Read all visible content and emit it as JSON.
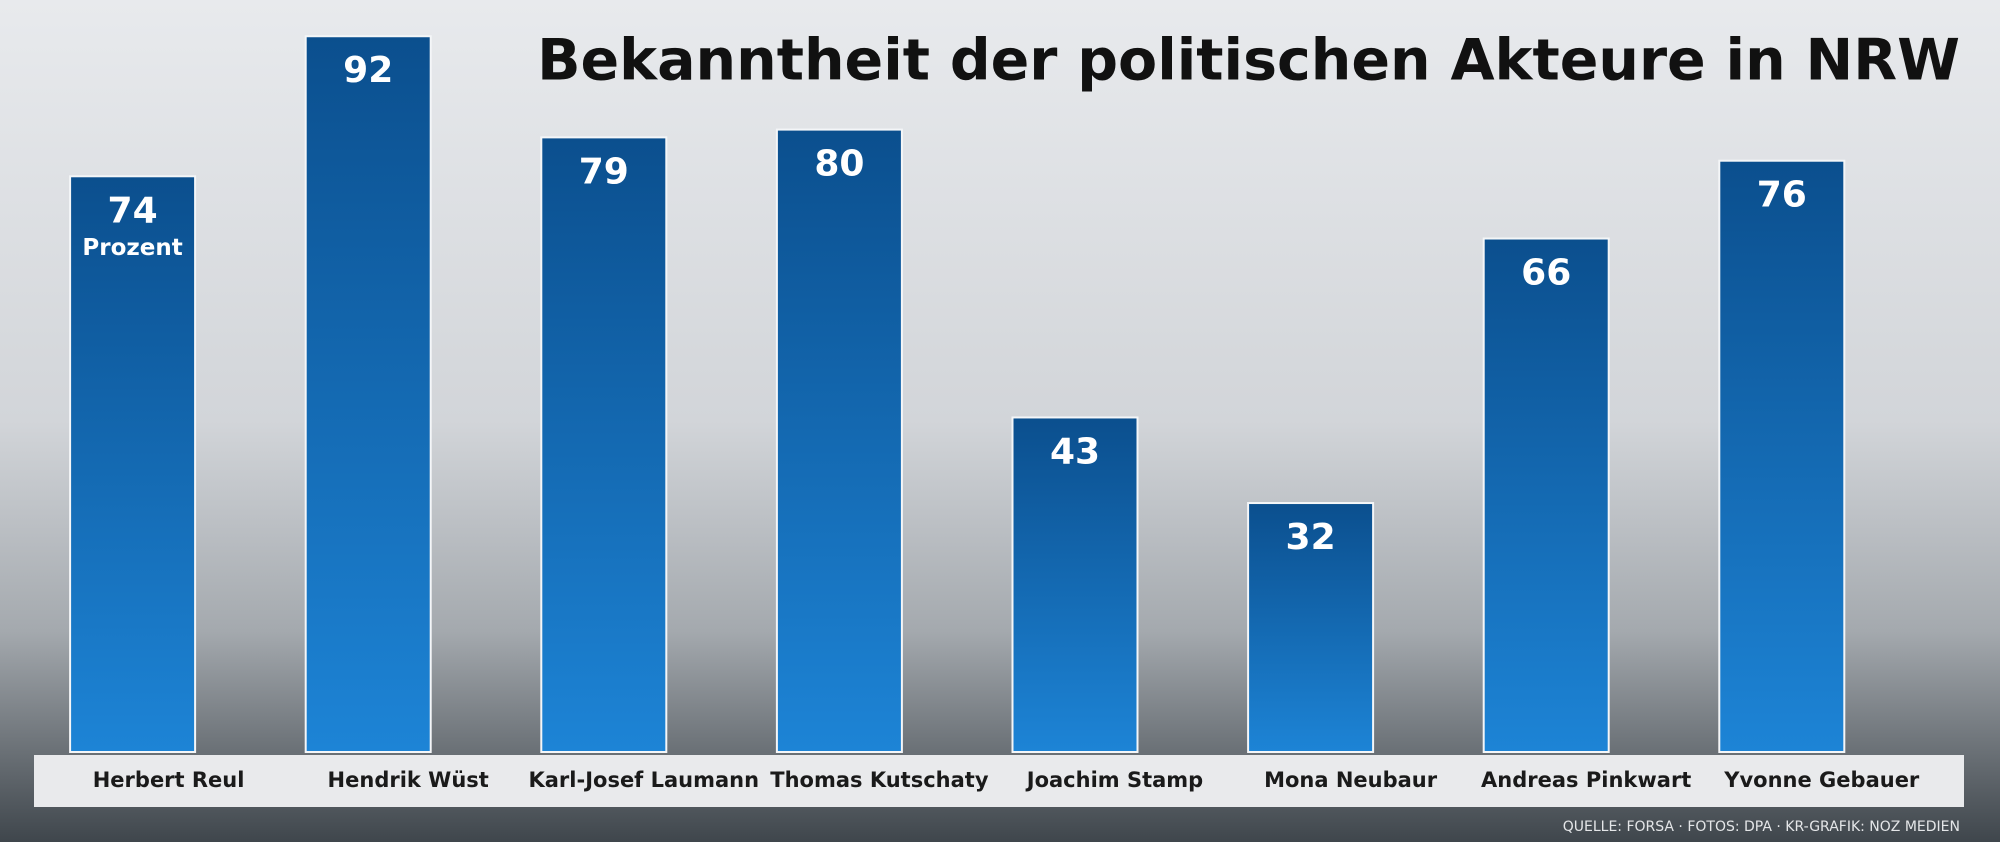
{
  "chart_data": {
    "type": "bar",
    "title": "Bekanntheit der politischen Akteure in NRW",
    "categories": [
      "Herbert Reul",
      "Hendrik Wüst",
      "Karl-Josef Laumann",
      "Thomas Kutschaty",
      "Joachim Stamp",
      "Mona Neubaur",
      "Andreas Pinkwart",
      "Yvonne Gebauer"
    ],
    "values": [
      74,
      92,
      79,
      80,
      43,
      32,
      66,
      76
    ],
    "value_unit": "Prozent",
    "color": "#0d5ca6",
    "source": "QUELLE: FORSA · FOTOS: DPA · KR-GRAFIK: NOZ MEDIEN"
  }
}
